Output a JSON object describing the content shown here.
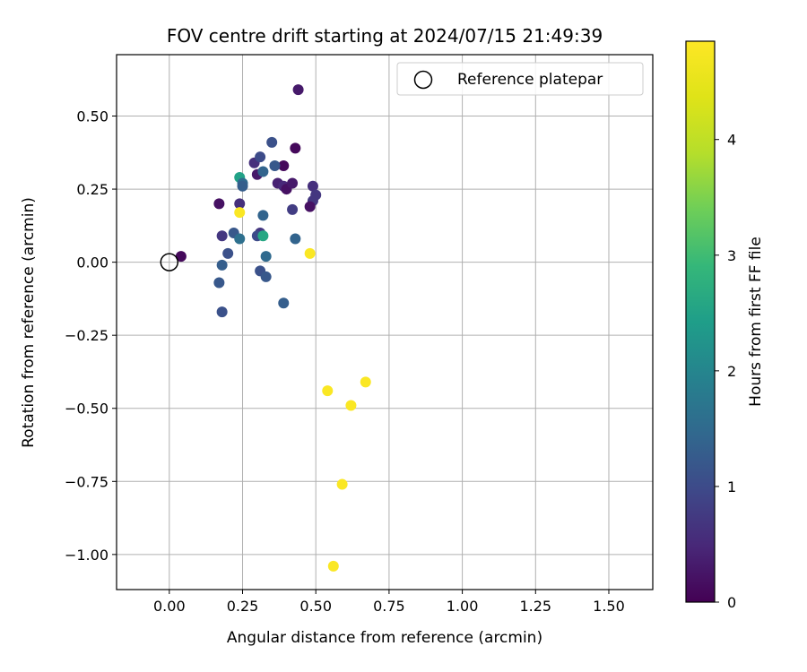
{
  "chart_data": {
    "type": "scatter",
    "title": "FOV centre drift starting at 2024/07/15 21:49:39",
    "xlabel": "Angular distance from reference (arcmin)",
    "ylabel": "Rotation from reference (arcmin)",
    "xlim": [
      -0.18,
      1.65
    ],
    "ylim": [
      -1.12,
      0.71
    ],
    "xticks": [
      0.0,
      0.25,
      0.5,
      0.75,
      1.0,
      1.25,
      1.5
    ],
    "xtick_labels": [
      "0.00",
      "0.25",
      "0.50",
      "0.75",
      "1.00",
      "1.25",
      "1.50"
    ],
    "yticks": [
      0.5,
      0.25,
      0.0,
      -0.25,
      -0.5,
      -0.75,
      -1.0
    ],
    "ytick_labels": [
      "0.50",
      "0.25",
      "0.00",
      "−0.25",
      "−0.50",
      "−0.75",
      "−1.00"
    ],
    "grid": true,
    "colormap": "viridis",
    "colorbar": {
      "label": "Hours from first FF file",
      "range": [
        0,
        4.85
      ],
      "ticks": [
        0,
        1,
        2,
        3,
        4
      ],
      "tick_labels": [
        "0",
        "1",
        "2",
        "3",
        "4"
      ]
    },
    "legend": {
      "position": "top-right",
      "entries": [
        "Reference platepar"
      ]
    },
    "reference_point": {
      "x": 0.0,
      "y": 0.0,
      "marker": "open-circle",
      "color": "#000000"
    },
    "series": [
      {
        "points": [
          {
            "x": 0.04,
            "y": 0.02,
            "c": 0.1
          },
          {
            "x": 0.17,
            "y": 0.2,
            "c": 0.2
          },
          {
            "x": 0.44,
            "y": 0.59,
            "c": 0.3
          },
          {
            "x": 0.43,
            "y": 0.39,
            "c": 0.1
          },
          {
            "x": 0.39,
            "y": 0.33,
            "c": 0.1
          },
          {
            "x": 0.29,
            "y": 0.34,
            "c": 0.6
          },
          {
            "x": 0.3,
            "y": 0.3,
            "c": 0.3
          },
          {
            "x": 0.31,
            "y": 0.36,
            "c": 1.0
          },
          {
            "x": 0.35,
            "y": 0.41,
            "c": 1.1
          },
          {
            "x": 0.36,
            "y": 0.33,
            "c": 1.2
          },
          {
            "x": 0.37,
            "y": 0.27,
            "c": 0.4
          },
          {
            "x": 0.39,
            "y": 0.26,
            "c": 0.5
          },
          {
            "x": 0.4,
            "y": 0.25,
            "c": 0.2
          },
          {
            "x": 0.42,
            "y": 0.27,
            "c": 0.3
          },
          {
            "x": 0.49,
            "y": 0.26,
            "c": 0.6
          },
          {
            "x": 0.49,
            "y": 0.21,
            "c": 0.7
          },
          {
            "x": 0.5,
            "y": 0.23,
            "c": 0.7
          },
          {
            "x": 0.48,
            "y": 0.19,
            "c": 0.2
          },
          {
            "x": 0.42,
            "y": 0.18,
            "c": 0.8
          },
          {
            "x": 0.24,
            "y": 0.2,
            "c": 0.6
          },
          {
            "x": 0.24,
            "y": 0.29,
            "c": 2.5
          },
          {
            "x": 0.25,
            "y": 0.27,
            "c": 1.5
          },
          {
            "x": 0.25,
            "y": 0.26,
            "c": 1.3
          },
          {
            "x": 0.32,
            "y": 0.31,
            "c": 1.4
          },
          {
            "x": 0.24,
            "y": 0.17,
            "c": 4.8
          },
          {
            "x": 0.32,
            "y": 0.16,
            "c": 1.4
          },
          {
            "x": 0.18,
            "y": 0.09,
            "c": 0.7
          },
          {
            "x": 0.22,
            "y": 0.1,
            "c": 1.2
          },
          {
            "x": 0.24,
            "y": 0.08,
            "c": 1.6
          },
          {
            "x": 0.31,
            "y": 0.1,
            "c": 0.7
          },
          {
            "x": 0.3,
            "y": 0.09,
            "c": 1.0
          },
          {
            "x": 0.32,
            "y": 0.09,
            "c": 2.6
          },
          {
            "x": 0.43,
            "y": 0.08,
            "c": 1.4
          },
          {
            "x": 0.48,
            "y": 0.03,
            "c": 4.8
          },
          {
            "x": 0.2,
            "y": 0.03,
            "c": 1.1
          },
          {
            "x": 0.33,
            "y": 0.02,
            "c": 1.5
          },
          {
            "x": 0.18,
            "y": -0.01,
            "c": 1.3
          },
          {
            "x": 0.31,
            "y": -0.03,
            "c": 1.1
          },
          {
            "x": 0.33,
            "y": -0.05,
            "c": 1.2
          },
          {
            "x": 0.17,
            "y": -0.07,
            "c": 1.2
          },
          {
            "x": 0.18,
            "y": -0.17,
            "c": 1.1
          },
          {
            "x": 0.39,
            "y": -0.14,
            "c": 1.3
          },
          {
            "x": 0.54,
            "y": -0.44,
            "c": 4.8
          },
          {
            "x": 0.62,
            "y": -0.49,
            "c": 4.8
          },
          {
            "x": 0.67,
            "y": -0.41,
            "c": 4.8
          },
          {
            "x": 0.59,
            "y": -0.76,
            "c": 4.8
          },
          {
            "x": 0.56,
            "y": -1.04,
            "c": 4.8
          }
        ]
      }
    ]
  }
}
